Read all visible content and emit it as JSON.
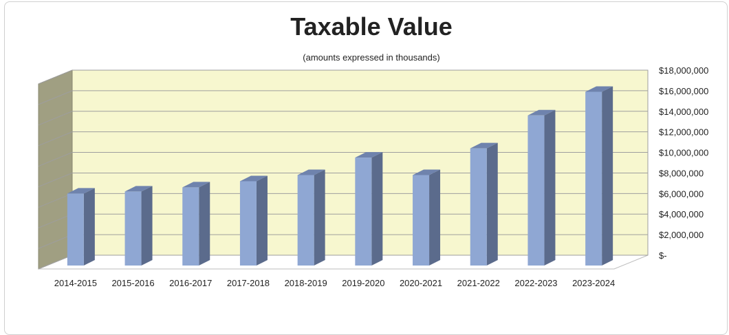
{
  "chart_data": {
    "type": "bar",
    "title": "Taxable Value",
    "subtitle": "(amounts expressed in thousands)",
    "xlabel": "",
    "ylabel": "",
    "categories": [
      "2014-2015",
      "2015-2016",
      "2016-2017",
      "2017-2018",
      "2018-2019",
      "2019-2020",
      "2020-2021",
      "2021-2022",
      "2022-2023",
      "2023-2024"
    ],
    "values": [
      7000000,
      7200000,
      7600000,
      8200000,
      8800000,
      10500000,
      8800000,
      11400000,
      14600000,
      16900000
    ],
    "ylim": [
      0,
      18000000
    ],
    "yticks": [
      0,
      2000000,
      4000000,
      6000000,
      8000000,
      10000000,
      12000000,
      14000000,
      16000000,
      18000000
    ],
    "ytick_labels": [
      "$-",
      "$2,000,000",
      "$4,000,000",
      "$6,000,000",
      "$8,000,000",
      "$10,000,000",
      "$12,000,000",
      "$14,000,000",
      "$16,000,000",
      "$18,000,000"
    ],
    "grid": true,
    "legend": "none",
    "colors": {
      "bar_front": "#8fa7d3",
      "bar_side": "#5b6b8c",
      "bar_top": "#6f83ad",
      "plot_back": "#f7f7cf",
      "plot_side": "#a09f82",
      "floor": "#ffffff",
      "gridline": "#9e9e9e"
    }
  }
}
